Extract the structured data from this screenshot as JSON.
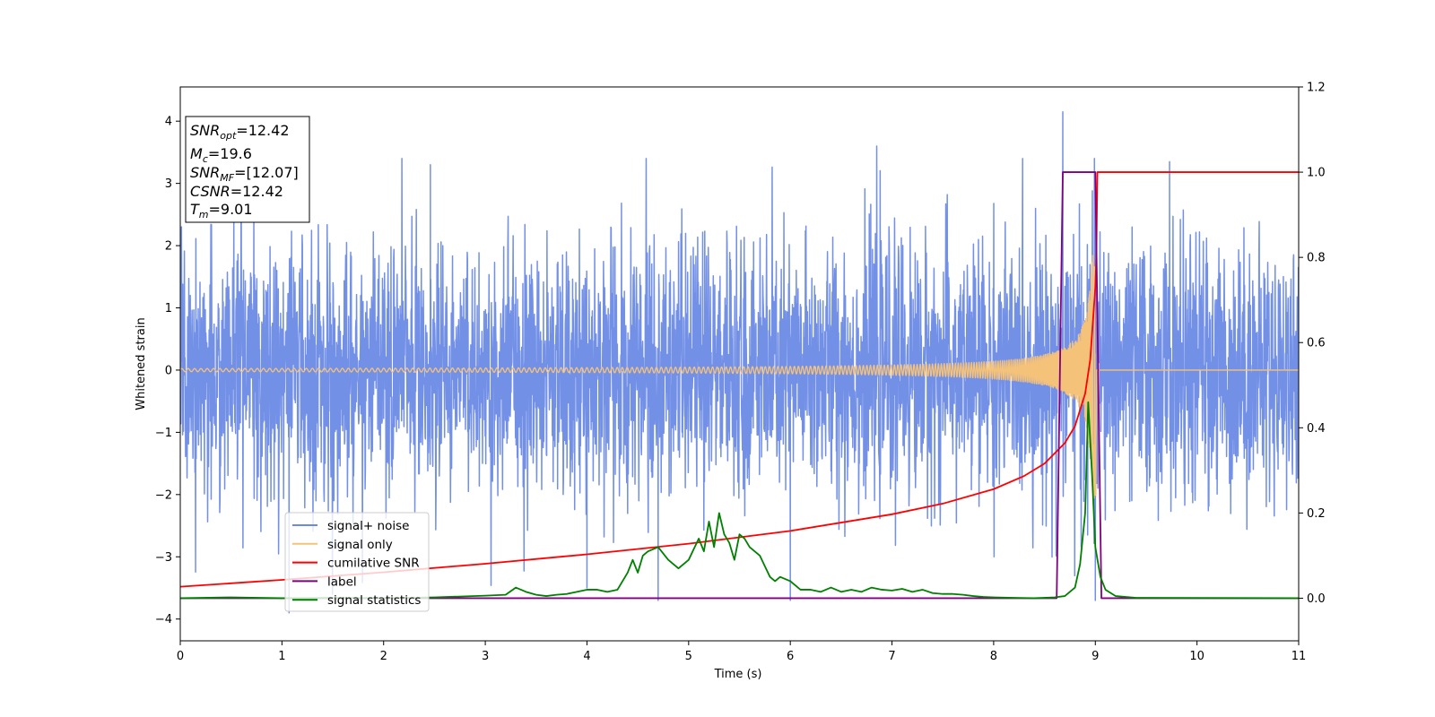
{
  "chart_data": {
    "type": "line",
    "title": "",
    "xlabel": "Time (s)",
    "ylabel": "Whitened strain",
    "xlim": [
      0,
      11
    ],
    "ylim_left": [
      -4.35,
      4.55
    ],
    "ylim_right": [
      -0.1,
      1.2
    ],
    "x_ticks": [
      0,
      1,
      2,
      3,
      4,
      5,
      6,
      7,
      8,
      9,
      10,
      11
    ],
    "y_ticks_left": [
      -4,
      -3,
      -2,
      -1,
      0,
      1,
      2,
      3,
      4
    ],
    "y_ticks_right": [
      "0.0",
      "0.2",
      "0.4",
      "0.6",
      "0.8",
      "1.0",
      "1.2"
    ],
    "legend_position": "lower-left",
    "grid": false,
    "annotation": [
      {
        "sym": "SNR",
        "sub": "opt",
        "rest": "=12.42"
      },
      {
        "sym": "M",
        "sub": "c",
        "rest": "=19.6"
      },
      {
        "sym": "SNR",
        "sub": "MF",
        "rest": "=[12.07]"
      },
      {
        "sym": "CSNR",
        "sub": "",
        "rest": "=12.42"
      },
      {
        "sym": "T",
        "sub": "m",
        "rest": "=9.01"
      }
    ],
    "series": [
      {
        "name": "signal+ noise",
        "axis": "left",
        "color": "#6b8ae6",
        "style": "noise",
        "noise_sigma": 1.0,
        "noise_peaks": [
          [
            1.07,
            -3.9
          ],
          [
            2.46,
            3.3
          ],
          [
            4.0,
            -3.5
          ],
          [
            4.7,
            -3.7
          ],
          [
            6.0,
            -3.7
          ],
          [
            6.85,
            3.6
          ],
          [
            8.68,
            4.15
          ],
          [
            9.0,
            -3.7
          ],
          [
            9.73,
            3.35
          ]
        ],
        "x_range": [
          0,
          11
        ]
      },
      {
        "name": "signal only",
        "axis": "left",
        "color": "#f5c27a",
        "style": "chirp",
        "chirp_tc": 9.01,
        "chirp_base_amp": 0.025,
        "chirp_peak_amp": 2.1
      },
      {
        "name": "cumilative SNR",
        "axis": "right",
        "color": "#ff0000",
        "x": [
          0,
          1,
          2,
          3,
          4,
          5,
          6,
          7,
          7.5,
          8,
          8.3,
          8.5,
          8.7,
          8.8,
          8.9,
          8.95,
          9.0,
          9.01,
          9.02,
          11
        ],
        "values": [
          0.027,
          0.043,
          0.061,
          0.081,
          0.103,
          0.128,
          0.158,
          0.197,
          0.222,
          0.256,
          0.287,
          0.316,
          0.364,
          0.404,
          0.48,
          0.56,
          0.73,
          0.8,
          1.0,
          1.0
        ]
      },
      {
        "name": "label",
        "axis": "right",
        "color": "#800080",
        "x": [
          0,
          8.62,
          8.68,
          9.0,
          9.06,
          11
        ],
        "values": [
          0,
          0,
          1,
          1,
          0,
          0
        ]
      },
      {
        "name": "signal statistics",
        "axis": "right",
        "color": "#008000",
        "x": [
          0,
          0.5,
          1,
          1.5,
          2,
          2.5,
          3,
          3.2,
          3.3,
          3.4,
          3.5,
          3.6,
          3.7,
          3.8,
          3.9,
          4.0,
          4.1,
          4.2,
          4.3,
          4.4,
          4.45,
          4.5,
          4.55,
          4.6,
          4.7,
          4.8,
          4.9,
          5.0,
          5.1,
          5.15,
          5.2,
          5.25,
          5.3,
          5.35,
          5.4,
          5.45,
          5.5,
          5.55,
          5.6,
          5.7,
          5.8,
          5.85,
          5.9,
          6.0,
          6.1,
          6.2,
          6.3,
          6.4,
          6.5,
          6.6,
          6.7,
          6.8,
          6.9,
          7.0,
          7.1,
          7.2,
          7.3,
          7.4,
          7.5,
          7.6,
          7.7,
          7.8,
          7.9,
          8.0,
          8.2,
          8.4,
          8.6,
          8.7,
          8.75,
          8.8,
          8.85,
          8.9,
          8.93,
          8.97,
          9.0,
          9.05,
          9.1,
          9.2,
          9.4,
          11
        ],
        "values": [
          0.0,
          0.002,
          0.0,
          0.001,
          0.0,
          0.002,
          0.006,
          0.008,
          0.025,
          0.015,
          0.008,
          0.005,
          0.008,
          0.01,
          0.015,
          0.02,
          0.02,
          0.015,
          0.02,
          0.06,
          0.09,
          0.06,
          0.1,
          0.11,
          0.12,
          0.09,
          0.07,
          0.09,
          0.14,
          0.11,
          0.18,
          0.12,
          0.2,
          0.15,
          0.13,
          0.09,
          0.15,
          0.14,
          0.12,
          0.1,
          0.05,
          0.04,
          0.05,
          0.04,
          0.02,
          0.02,
          0.015,
          0.025,
          0.015,
          0.02,
          0.015,
          0.025,
          0.02,
          0.018,
          0.022,
          0.015,
          0.02,
          0.012,
          0.01,
          0.01,
          0.008,
          0.005,
          0.003,
          0.002,
          0.001,
          0.0,
          0.002,
          0.005,
          0.015,
          0.025,
          0.08,
          0.2,
          0.46,
          0.28,
          0.12,
          0.05,
          0.02,
          0.005,
          0.001,
          0.0
        ]
      }
    ]
  }
}
